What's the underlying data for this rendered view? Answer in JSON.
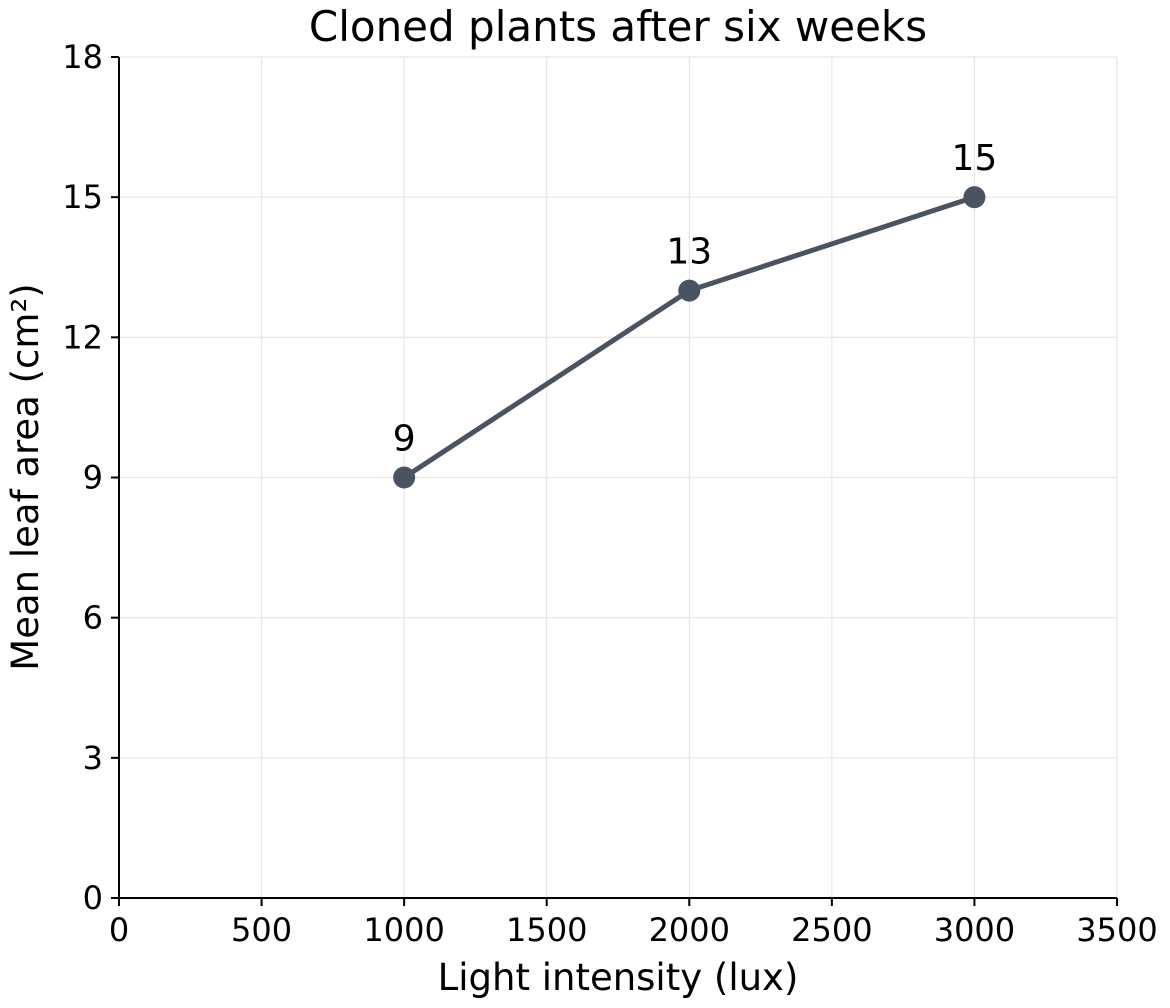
{
  "chart_data": {
    "type": "line",
    "title": "Cloned plants after six weeks",
    "xlabel": "Light intensity (lux)",
    "ylabel": "Mean leaf area (cm²)",
    "xlim": [
      0,
      3500
    ],
    "ylim": [
      0,
      18
    ],
    "x_ticks": [
      0,
      500,
      1000,
      1500,
      2000,
      2500,
      3000,
      3500
    ],
    "y_ticks": [
      0,
      3,
      6,
      9,
      12,
      15,
      18
    ],
    "grid": true,
    "series": [
      {
        "x": [
          1000,
          2000,
          3000
        ],
        "y": [
          9,
          13,
          15
        ],
        "data_labels": [
          "9",
          "13",
          "15"
        ],
        "color": "#4a5361"
      }
    ]
  }
}
